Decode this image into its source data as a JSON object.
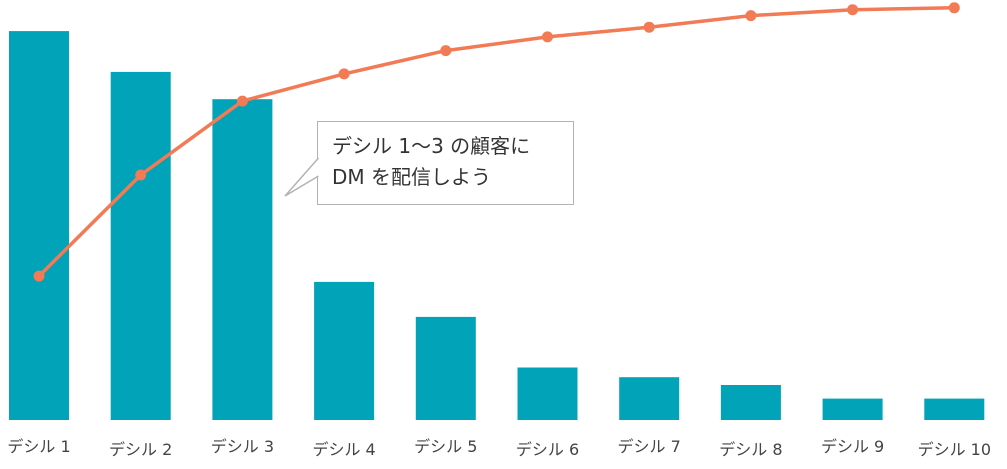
{
  "chart_data": {
    "type": "bar",
    "categories": [
      "デシル 1",
      "デシル 2",
      "デシル 3",
      "デシル 4",
      "デシル 5",
      "デシル 6",
      "デシル 7",
      "デシル 8",
      "デシル 9",
      "デシル 10"
    ],
    "series": [
      {
        "type": "bar",
        "values": [
          100,
          89.5,
          82.5,
          35.5,
          26.5,
          13.5,
          11,
          9,
          5.5,
          5.5
        ]
      },
      {
        "type": "line",
        "values": [
          37,
          63,
          82,
          89,
          95,
          98.5,
          101,
          104,
          105.5,
          106
        ]
      }
    ],
    "ylim": [
      0,
      108
    ],
    "grid": false,
    "colors": {
      "bar": "#00a3b7",
      "line": "#f27a54"
    },
    "annotation": {
      "lines": [
        "デシル 1〜3 の顧客に",
        "DM を配信しよう"
      ]
    }
  }
}
